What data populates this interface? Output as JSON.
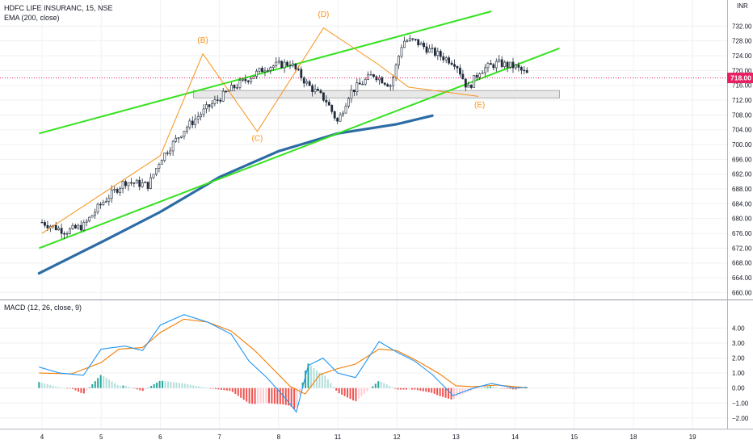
{
  "header": {
    "symbol_line": "HDFC LIFE INSURANC, 15, NSE",
    "indicator_line": "EMA (200, close)",
    "currency": "INR"
  },
  "macd_panel": {
    "label": "MACD (12, 26, close, 9)"
  },
  "price_marker": {
    "value": 718.0,
    "label": "718.00",
    "color": "#e91e63"
  },
  "colors": {
    "candle": "#1f2a38",
    "channel": "#35e21f",
    "wave": "#f7931a",
    "ema": "#2c6ca5",
    "macd_line": "#2196f3",
    "signal_line": "#f57c00",
    "hist_pos_strong": "#26a69a",
    "hist_pos_weak": "#b2dfdb",
    "hist_neg_strong": "#ef5350",
    "hist_neg_weak": "#ffcdd2",
    "zone_fill": "#e8e8e8",
    "grid": "#eef0f3"
  },
  "chart_data": [
    {
      "type": "candlestick",
      "title": "HDFC LIFE INSURANC, 15, NSE",
      "x_labels": [
        "4",
        "5",
        "6",
        "7",
        "8",
        "11",
        "12",
        "13",
        "14",
        "15",
        "18",
        "19"
      ],
      "y_ticks": [
        "732.00",
        "728.00",
        "724.00",
        "720.00",
        "716.00",
        "712.00",
        "708.00",
        "704.00",
        "700.00",
        "696.00",
        "692.00",
        "688.00",
        "684.00",
        "680.00",
        "676.00",
        "672.00",
        "668.00",
        "664.00",
        "660.00"
      ],
      "ylim": [
        659,
        736
      ],
      "close_path": [
        [
          0,
          679
        ],
        [
          0.4,
          676.5
        ],
        [
          0.7,
          678
        ],
        [
          1.0,
          684
        ],
        [
          1.4,
          690
        ],
        [
          1.8,
          689
        ],
        [
          2.0,
          696
        ],
        [
          2.4,
          704
        ],
        [
          2.8,
          710
        ],
        [
          3.2,
          715
        ],
        [
          3.5,
          718
        ],
        [
          3.8,
          721
        ],
        [
          4.2,
          722
        ],
        [
          4.5,
          716
        ],
        [
          4.8,
          712
        ],
        [
          5.0,
          706
        ],
        [
          5.2,
          714
        ],
        [
          5.6,
          719
        ],
        [
          5.9,
          716
        ],
        [
          6.1,
          728
        ],
        [
          6.3,
          728
        ],
        [
          6.6,
          725
        ],
        [
          7.0,
          722
        ],
        [
          7.2,
          715
        ],
        [
          7.4,
          720
        ],
        [
          7.7,
          722
        ],
        [
          8.0,
          721
        ],
        [
          8.2,
          719
        ]
      ],
      "candle_count": 175,
      "ema_200": [
        [
          -0.05,
          665.2
        ],
        [
          1.0,
          673.6
        ],
        [
          2.0,
          681.8
        ],
        [
          3.0,
          691.2
        ],
        [
          4.0,
          698.2
        ],
        [
          5.0,
          703.0
        ],
        [
          6.0,
          705.5
        ],
        [
          6.6,
          707.8
        ]
      ],
      "channel_lines": [
        [
          [
            -0.05,
            703
          ],
          [
            7.6,
            736
          ]
        ],
        [
          [
            -0.05,
            672
          ],
          [
            8.75,
            726
          ]
        ]
      ],
      "wave_path": [
        [
          0,
          676
        ],
        [
          2.0,
          697
        ],
        [
          2.72,
          724.5
        ],
        [
          3.64,
          703.5
        ],
        [
          4.76,
          731.5
        ],
        [
          5.7,
          721.5
        ],
        [
          6.2,
          715.5
        ],
        [
          7.38,
          713
        ]
      ],
      "wave_labels": [
        {
          "label": "(B)",
          "x": 2.72,
          "y": 727.5
        },
        {
          "label": "(C)",
          "x": 3.64,
          "y": 701.0
        },
        {
          "label": "(D)",
          "x": 4.76,
          "y": 734.5
        },
        {
          "label": "(E)",
          "x": 7.4,
          "y": 710.0
        }
      ],
      "zone": {
        "x0": 2.56,
        "x1": 8.75,
        "y0": 712.6,
        "y1": 714.6
      }
    },
    {
      "type": "macd",
      "title": "MACD (12, 26, close, 9)",
      "y_ticks": [
        "4.00",
        "3.00",
        "2.00",
        "1.00",
        "0.00",
        "−1.00",
        "−2.00"
      ],
      "ylim": [
        -2.6,
        5.1
      ],
      "macd": [
        [
          -0.05,
          1.4
        ],
        [
          0.3,
          1.0
        ],
        [
          0.7,
          0.85
        ],
        [
          1.0,
          2.6
        ],
        [
          1.4,
          2.8
        ],
        [
          1.7,
          2.5
        ],
        [
          2.0,
          4.2
        ],
        [
          2.4,
          4.9
        ],
        [
          2.8,
          4.4
        ],
        [
          3.2,
          3.6
        ],
        [
          3.5,
          1.8
        ],
        [
          3.8,
          0.7
        ],
        [
          4.1,
          -0.6
        ],
        [
          4.3,
          -1.6
        ],
        [
          4.5,
          1.5
        ],
        [
          4.75,
          2.0
        ],
        [
          5.0,
          1.0
        ],
        [
          5.3,
          0.7
        ],
        [
          5.7,
          3.1
        ],
        [
          6.0,
          2.4
        ],
        [
          6.3,
          1.8
        ],
        [
          6.6,
          0.9
        ],
        [
          6.95,
          -0.5
        ],
        [
          7.3,
          0.0
        ],
        [
          7.6,
          0.3
        ],
        [
          8.0,
          0.0
        ],
        [
          8.2,
          0.05
        ]
      ],
      "signal": [
        [
          -0.05,
          1.0
        ],
        [
          0.5,
          0.95
        ],
        [
          1.0,
          1.7
        ],
        [
          1.3,
          2.6
        ],
        [
          1.7,
          2.7
        ],
        [
          2.0,
          3.7
        ],
        [
          2.4,
          4.6
        ],
        [
          2.8,
          4.4
        ],
        [
          3.2,
          3.8
        ],
        [
          3.6,
          2.5
        ],
        [
          3.9,
          1.3
        ],
        [
          4.2,
          0.1
        ],
        [
          4.45,
          -0.4
        ],
        [
          4.7,
          0.9
        ],
        [
          5.0,
          1.3
        ],
        [
          5.3,
          1.6
        ],
        [
          5.7,
          2.6
        ],
        [
          6.0,
          2.5
        ],
        [
          6.3,
          1.9
        ],
        [
          6.7,
          1.0
        ],
        [
          7.0,
          0.15
        ],
        [
          7.3,
          0.1
        ],
        [
          7.7,
          0.2
        ],
        [
          8.0,
          0.1
        ],
        [
          8.2,
          0.0
        ]
      ],
      "histogram_bars": 175
    }
  ]
}
